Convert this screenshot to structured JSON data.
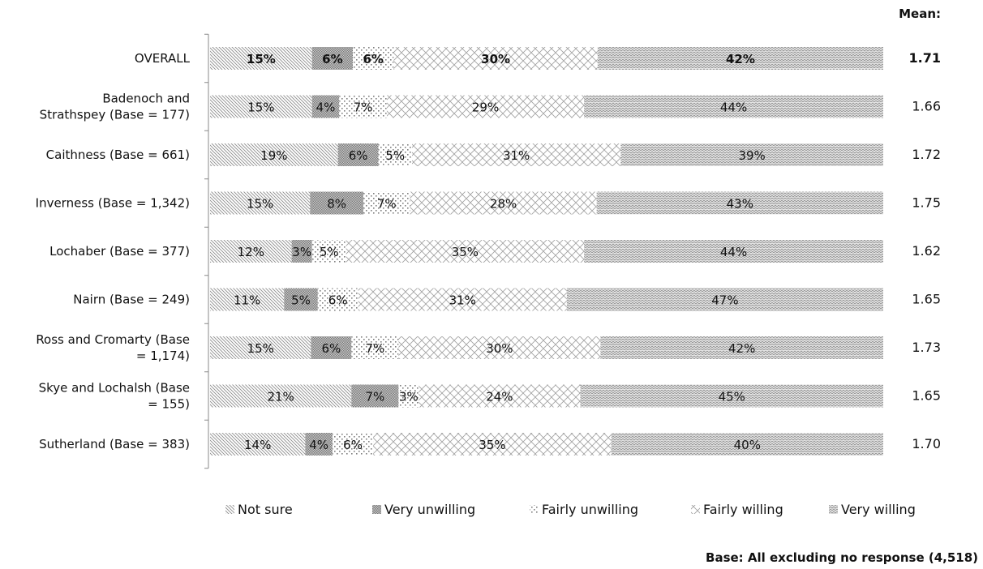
{
  "chart_data": {
    "type": "bar",
    "orientation": "horizontal",
    "stacked": true,
    "percent_stacked": true,
    "categories": [
      "OVERALL",
      "Badenoch and Strathspey (Base = 177)",
      "Caithness (Base = 661)",
      "Inverness (Base = 1,342)",
      "Lochaber (Base = 377)",
      "Nairn (Base = 249)",
      "Ross and Cromarty (Base = 1,174)",
      "Skye and Lochalsh (Base = 155)",
      "Sutherland (Base = 383)"
    ],
    "category_lines": [
      [
        "OVERALL"
      ],
      [
        "Badenoch and",
        "Strathspey (Base = 177)"
      ],
      [
        "Caithness (Base = 661)"
      ],
      [
        "Inverness (Base = 1,342)"
      ],
      [
        "Lochaber (Base = 377)"
      ],
      [
        "Nairn (Base = 249)"
      ],
      [
        "Ross and Cromarty (Base",
        "= 1,174)"
      ],
      [
        "Skye and Lochalsh (Base",
        "= 155)"
      ],
      [
        "Sutherland (Base = 383)"
      ]
    ],
    "series": [
      {
        "name": "Not sure",
        "values": [
          15,
          15,
          19,
          15,
          12,
          11,
          15,
          21,
          14
        ],
        "pattern": "diag-fine"
      },
      {
        "name": "Very unwilling",
        "values": [
          6,
          4,
          6,
          8,
          3,
          5,
          6,
          7,
          4
        ],
        "pattern": "dense-dots"
      },
      {
        "name": "Fairly unwilling",
        "values": [
          6,
          7,
          5,
          7,
          5,
          6,
          7,
          3,
          6
        ],
        "pattern": "sparse-dots"
      },
      {
        "name": "Fairly willing",
        "values": [
          30,
          29,
          31,
          28,
          35,
          31,
          30,
          24,
          35
        ],
        "pattern": "diamond"
      },
      {
        "name": "Very willing",
        "values": [
          42,
          44,
          39,
          43,
          44,
          47,
          42,
          45,
          40
        ],
        "pattern": "zigzag"
      }
    ],
    "value_labels": [
      [
        "15%",
        "6%",
        "6%",
        "30%",
        "42%"
      ],
      [
        "15%",
        "4%",
        "7%",
        "29%",
        "44%"
      ],
      [
        "19%",
        "6%",
        "5%",
        "31%",
        "39%"
      ],
      [
        "15%",
        "8%",
        "7%",
        "28%",
        "43%"
      ],
      [
        "12%",
        "3%",
        "5%",
        "35%",
        "44%"
      ],
      [
        "11%",
        "5%",
        "6%",
        "31%",
        "47%"
      ],
      [
        "15%",
        "6%",
        "7%",
        "30%",
        "42%"
      ],
      [
        "21%",
        "7%",
        "3%",
        "24%",
        "45%"
      ],
      [
        "14%",
        "4%",
        "6%",
        "35%",
        "40%"
      ]
    ],
    "mean_header": "Mean:",
    "means": [
      "1.71",
      "1.66",
      "1.72",
      "1.75",
      "1.62",
      "1.65",
      "1.73",
      "1.65",
      "1.70"
    ],
    "bold_rows": [
      0
    ],
    "xlim": [
      0,
      100
    ],
    "legend_position": "bottom",
    "footnote": "Base: All excluding no response (4,518)",
    "colors": {
      "pattern": "#8c8c8c",
      "text": "#111111",
      "axis": "#888888"
    }
  }
}
